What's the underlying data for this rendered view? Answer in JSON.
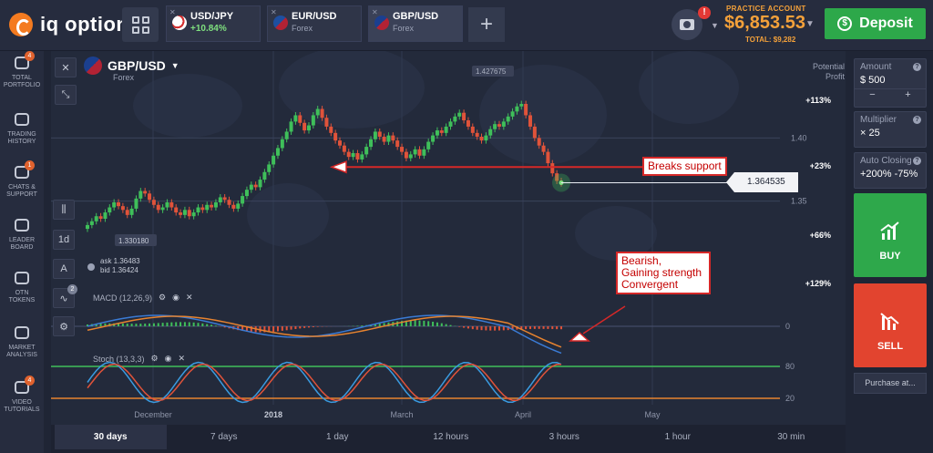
{
  "brand": {
    "name": "iq option",
    "accent": "#f47b20"
  },
  "tabs": [
    {
      "name": "USD/JPY",
      "sub": "+10.84%",
      "active": false
    },
    {
      "name": "EUR/USD",
      "sub": "Forex",
      "active": false
    },
    {
      "name": "GBP/USD",
      "sub": "Forex",
      "active": true
    }
  ],
  "account": {
    "label": "PRACTICE ACCOUNT",
    "balance": "$6,853.53",
    "total": "TOTAL: $9,282",
    "badge": "!"
  },
  "deposit": {
    "label": "Deposit",
    "icon": "dollar-coin-icon"
  },
  "nav": [
    {
      "l1": "TOTAL",
      "l2": "PORTFOLIO",
      "badge": "4",
      "icon": "briefcase-icon"
    },
    {
      "l1": "TRADING",
      "l2": "HISTORY",
      "badge": "",
      "icon": "clock-icon"
    },
    {
      "l1": "CHATS &",
      "l2": "SUPPORT",
      "badge": "1",
      "icon": "chat-icon"
    },
    {
      "l1": "LEADER",
      "l2": "BOARD",
      "badge": "",
      "icon": "globe-icon"
    },
    {
      "l1": "OTN",
      "l2": "TOKENS",
      "badge": "",
      "icon": "token-icon"
    },
    {
      "l1": "MARKET",
      "l2": "ANALYSIS",
      "badge": "",
      "icon": "news-icon"
    },
    {
      "l1": "VIDEO",
      "l2": "TUTORIALS",
      "badge": "4",
      "icon": "video-icon"
    }
  ],
  "symbol": {
    "name": "GBP/USD",
    "sub": "Forex"
  },
  "tools": {
    "period": "1d",
    "indicators_badge": "2"
  },
  "potential": {
    "label": "Potential Profit",
    "levels": [
      "+113%",
      "+23%",
      "+66%",
      "+129%"
    ]
  },
  "quote": {
    "ask": "ask 1.36483",
    "bid": "bid 1.36424"
  },
  "price": {
    "current": "1.364535",
    "high_label": "1.427675",
    "low_label": "1.330180",
    "grid": [
      "1.40",
      "1.35"
    ]
  },
  "macd": {
    "label": "MACD (12,26,9)",
    "zero": "0"
  },
  "stoch": {
    "label": "Stoch (13,3,3)",
    "upper": "80",
    "lower": "20"
  },
  "xaxis": [
    "December",
    "2018",
    "March",
    "April",
    "May"
  ],
  "annotations": {
    "support": "Breaks support",
    "bearish": [
      "Bearish,",
      "Gaining strength",
      "Convergent"
    ]
  },
  "timeframes": [
    "30 days",
    "7 days",
    "1 day",
    "12 hours",
    "3 hours",
    "1 hour",
    "30 min"
  ],
  "amount": {
    "label": "Amount",
    "value": "$  500",
    "minus": "−",
    "plus": "+"
  },
  "multiplier": {
    "label": "Multiplier",
    "value": "× 25"
  },
  "autoclosing": {
    "label": "Auto Closing",
    "value": "+200% -75%"
  },
  "buy": {
    "label": "BUY",
    "color": "#2ea84b"
  },
  "sell": {
    "label": "SELL",
    "color": "#e2442f"
  },
  "purchase": {
    "label": "Purchase at..."
  },
  "chart_data": {
    "type": "candlestick",
    "symbol": "GBP/USD",
    "ylim": [
      1.31,
      1.44
    ],
    "candles": [
      1.331,
      1.334,
      1.338,
      1.336,
      1.341,
      1.345,
      1.349,
      1.346,
      1.343,
      1.339,
      1.344,
      1.352,
      1.358,
      1.356,
      1.351,
      1.347,
      1.343,
      1.345,
      1.349,
      1.345,
      1.341,
      1.339,
      1.343,
      1.338,
      1.341,
      1.345,
      1.343,
      1.347,
      1.345,
      1.349,
      1.353,
      1.351,
      1.347,
      1.344,
      1.348,
      1.354,
      1.359,
      1.363,
      1.361,
      1.367,
      1.373,
      1.379,
      1.386,
      1.392,
      1.399,
      1.405,
      1.413,
      1.418,
      1.412,
      1.406,
      1.41,
      1.418,
      1.423,
      1.416,
      1.409,
      1.404,
      1.398,
      1.394,
      1.389,
      1.385,
      1.388,
      1.383,
      1.387,
      1.393,
      1.399,
      1.405,
      1.401,
      1.397,
      1.402,
      1.398,
      1.393,
      1.389,
      1.384,
      1.387,
      1.391,
      1.386,
      1.391,
      1.397,
      1.402,
      1.406,
      1.404,
      1.409,
      1.413,
      1.417,
      1.42,
      1.414,
      1.409,
      1.404,
      1.401,
      1.398,
      1.402,
      1.407,
      1.411,
      1.409,
      1.413,
      1.417,
      1.421,
      1.425,
      1.427,
      1.418,
      1.409,
      1.4,
      1.394,
      1.389,
      1.38,
      1.372,
      1.366,
      1.364
    ],
    "current_price": 1.364535,
    "support_level": 1.377,
    "macd_range": [
      -1,
      1
    ],
    "stoch_levels": [
      80,
      20
    ]
  }
}
